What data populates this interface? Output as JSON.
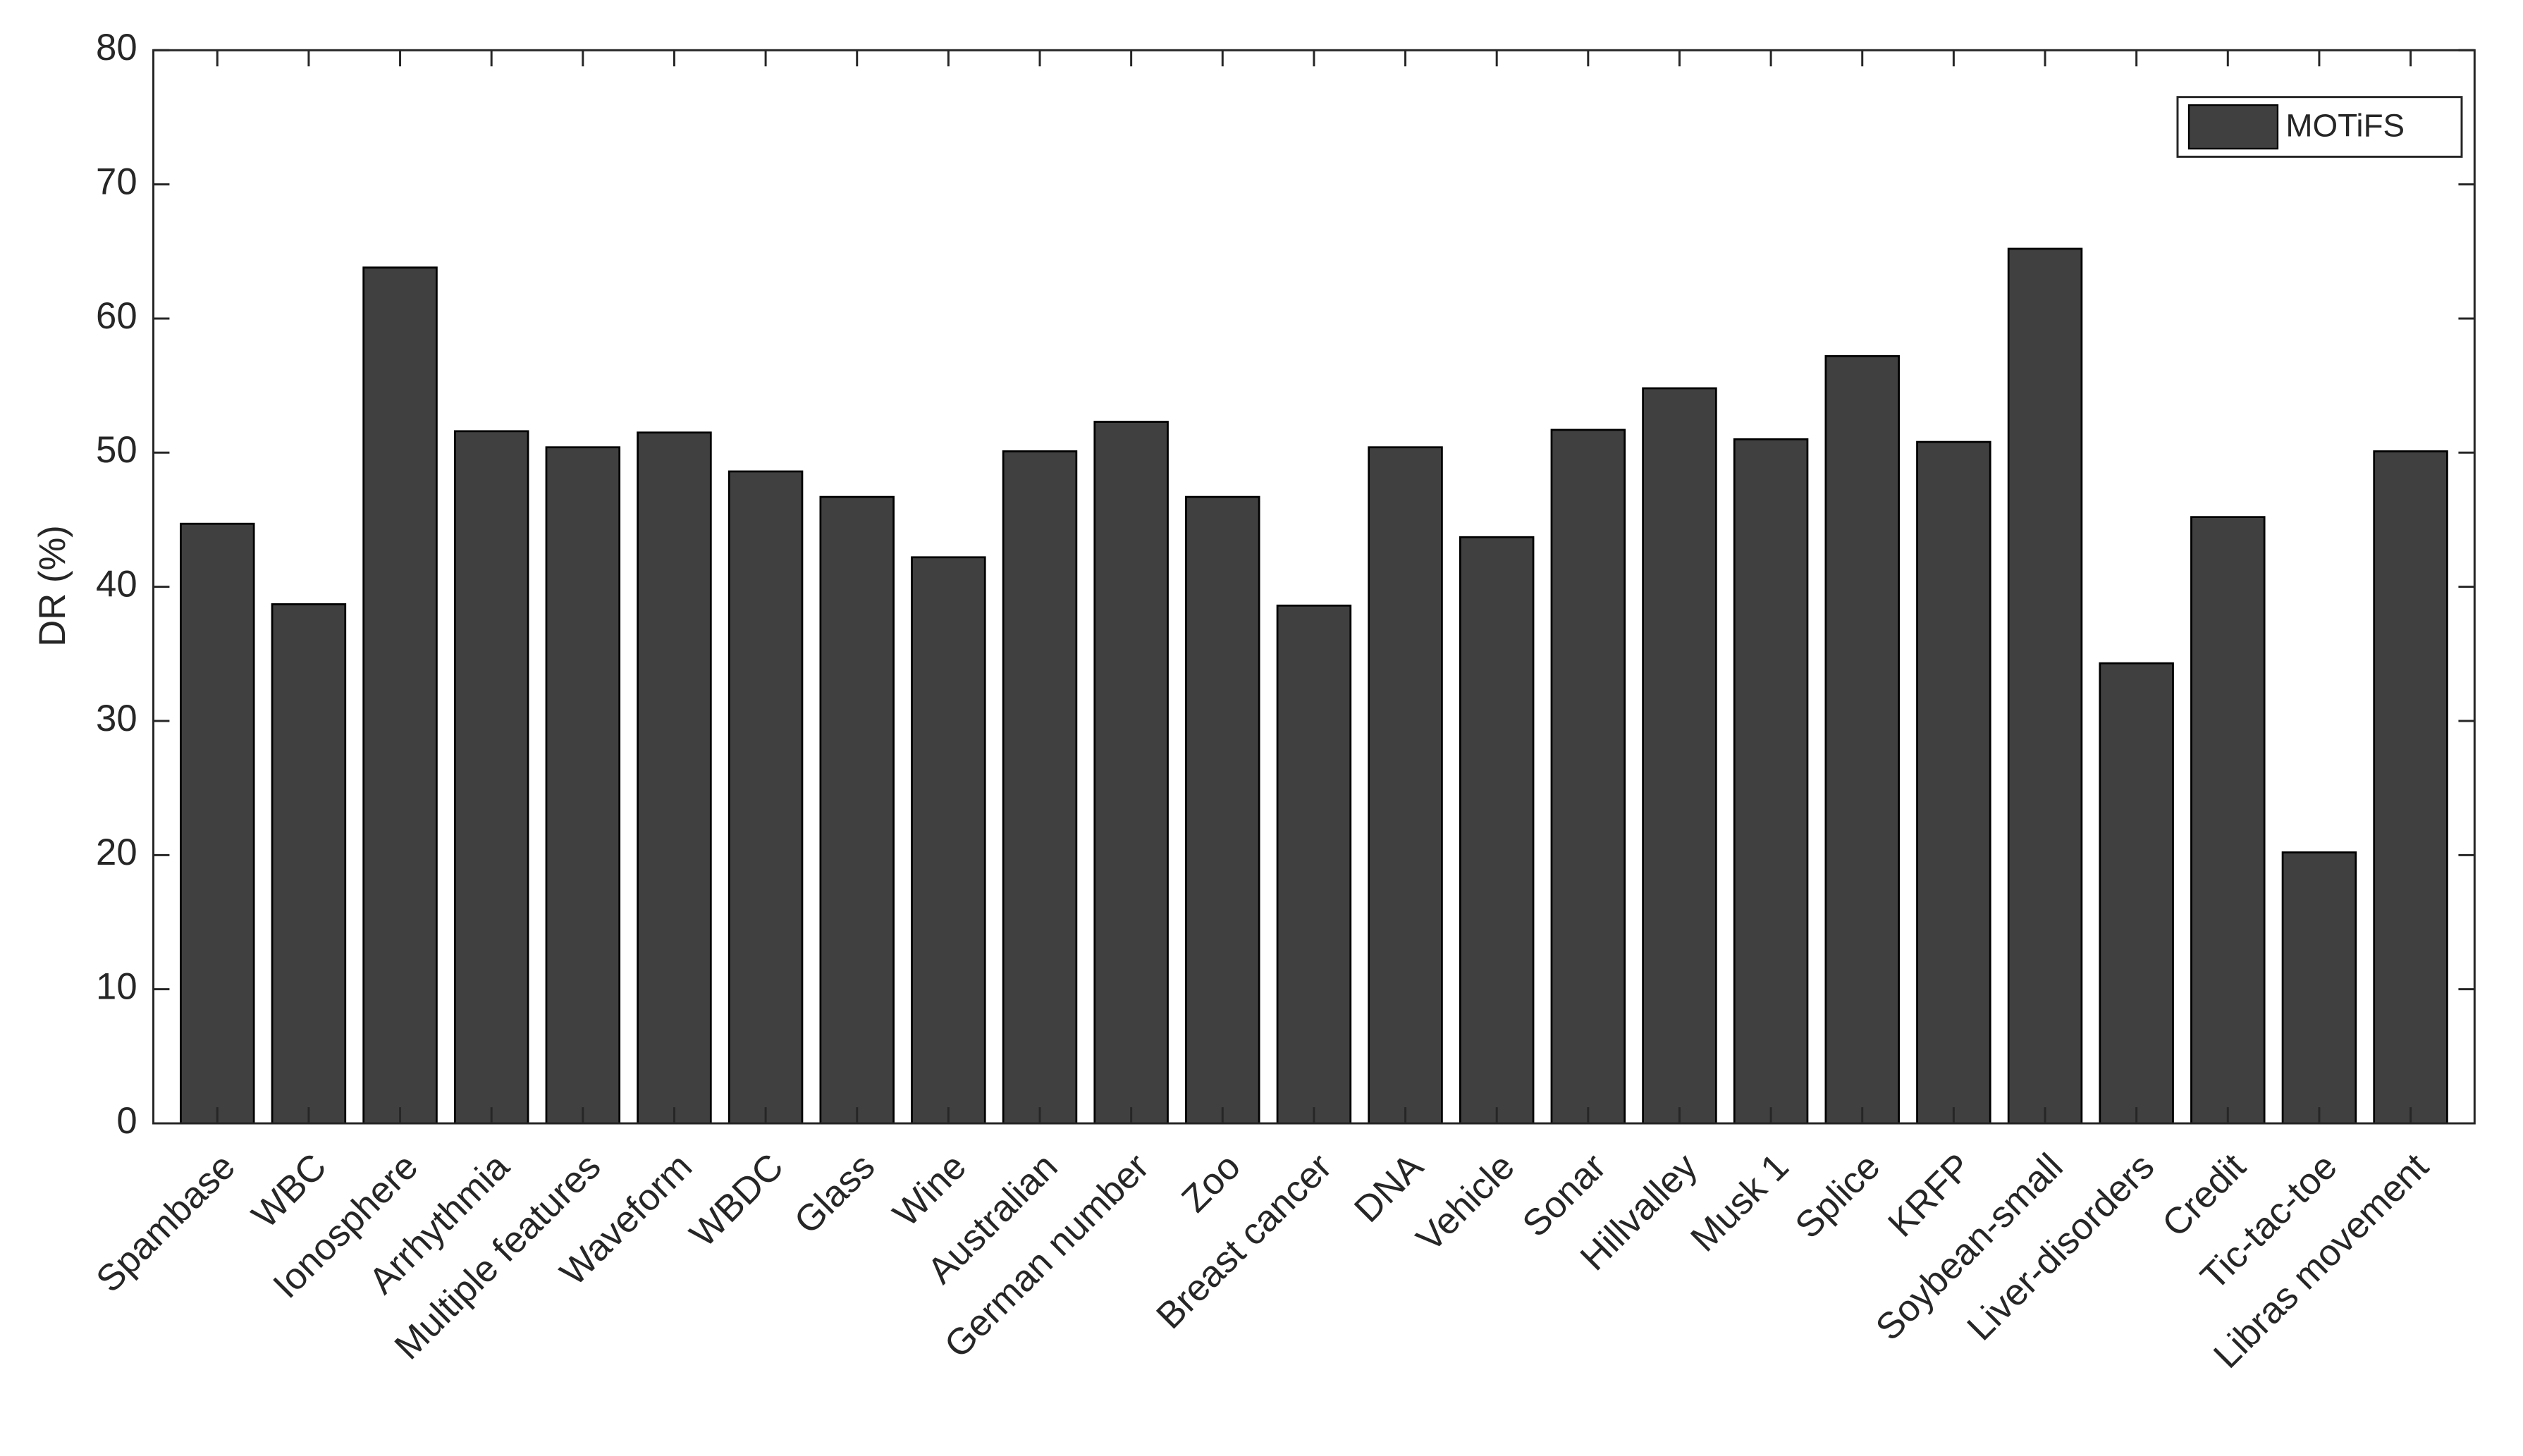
{
  "chart_data": {
    "type": "bar",
    "y_label": "DR (%)",
    "categories": [
      "Spambase",
      "WBC",
      "Ionosphere",
      "Arrhythmia",
      "Multiple features",
      "Waveform",
      "WBDC",
      "Glass",
      "Wine",
      "Australian",
      "German number",
      "Zoo",
      "Breast cancer",
      "DNA",
      "Vehicle",
      "Sonar",
      "Hillvalley",
      "Musk 1",
      "Splice",
      "KRFP",
      "Soybean-small",
      "Liver-disorders",
      "Credit",
      "Tic-tac-toe",
      "Libras movement"
    ],
    "series": [
      {
        "name": "MOTiFS",
        "color": "#404040",
        "values": [
          44.7,
          38.7,
          63.8,
          51.6,
          50.4,
          51.5,
          48.6,
          46.7,
          42.2,
          50.1,
          52.3,
          46.7,
          38.6,
          50.4,
          43.7,
          51.7,
          54.8,
          51.0,
          57.2,
          50.8,
          65.2,
          34.3,
          45.2,
          20.2,
          50.1
        ]
      }
    ],
    "ylim": [
      0,
      80
    ],
    "yticks": [
      0,
      10,
      20,
      30,
      40,
      50,
      60,
      70,
      80
    ],
    "legend": "upper right"
  }
}
